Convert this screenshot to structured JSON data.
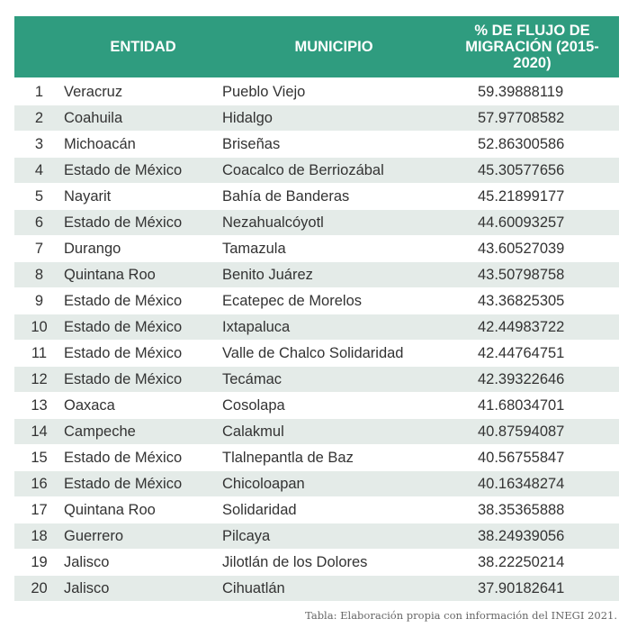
{
  "table": {
    "header": [
      "ENTIDAD",
      "MUNICIPIO",
      "% DE FLUJO DE MIGRACIÓN (2015-2020)"
    ],
    "rows": [
      [
        "1",
        "Veracruz",
        "Pueblo Viejo",
        "59.39888119"
      ],
      [
        "2",
        "Coahuila",
        "Hidalgo",
        "57.97708582"
      ],
      [
        "3",
        "Michoacán",
        "Briseñas",
        "52.86300586"
      ],
      [
        "4",
        "Estado de México",
        "Coacalco de Berriozábal",
        "45.30577656"
      ],
      [
        "5",
        "Nayarit",
        "Bahía de Banderas",
        "45.21899177"
      ],
      [
        "6",
        "Estado de México",
        "Nezahualcóyotl",
        "44.60093257"
      ],
      [
        "7",
        "Durango",
        "Tamazula",
        "43.60527039"
      ],
      [
        "8",
        "Quintana Roo",
        "Benito Juárez",
        "43.50798758"
      ],
      [
        "9",
        "Estado de México",
        "Ecatepec de Morelos",
        "43.36825305"
      ],
      [
        "10",
        "Estado de México",
        "Ixtapaluca",
        "42.44983722"
      ],
      [
        "11",
        "Estado de México",
        "Valle de Chalco Solidaridad",
        "42.44764751"
      ],
      [
        "12",
        "Estado de México",
        "Tecámac",
        "42.39322646"
      ],
      [
        "13",
        "Oaxaca",
        "Cosolapa",
        "41.68034701"
      ],
      [
        "14",
        "Campeche",
        "Calakmul",
        "40.87594087"
      ],
      [
        "15",
        "Estado de México",
        "Tlalnepantla de Baz",
        "40.56755847"
      ],
      [
        "16",
        "Estado de México",
        "Chicoloapan",
        "40.16348274"
      ],
      [
        "17",
        "Quintana Roo",
        "Solidaridad",
        "38.35365888"
      ],
      [
        "18",
        "Guerrero",
        "Pilcaya",
        "38.24939056"
      ],
      [
        "19",
        "Jalisco",
        "Jilotlán de los Dolores",
        "38.22250214"
      ],
      [
        "20",
        "Jalisco",
        "Cihuatlán",
        "37.90182641"
      ]
    ],
    "source": "Tabla: Elaboración propia con información del INEGI 2021."
  }
}
